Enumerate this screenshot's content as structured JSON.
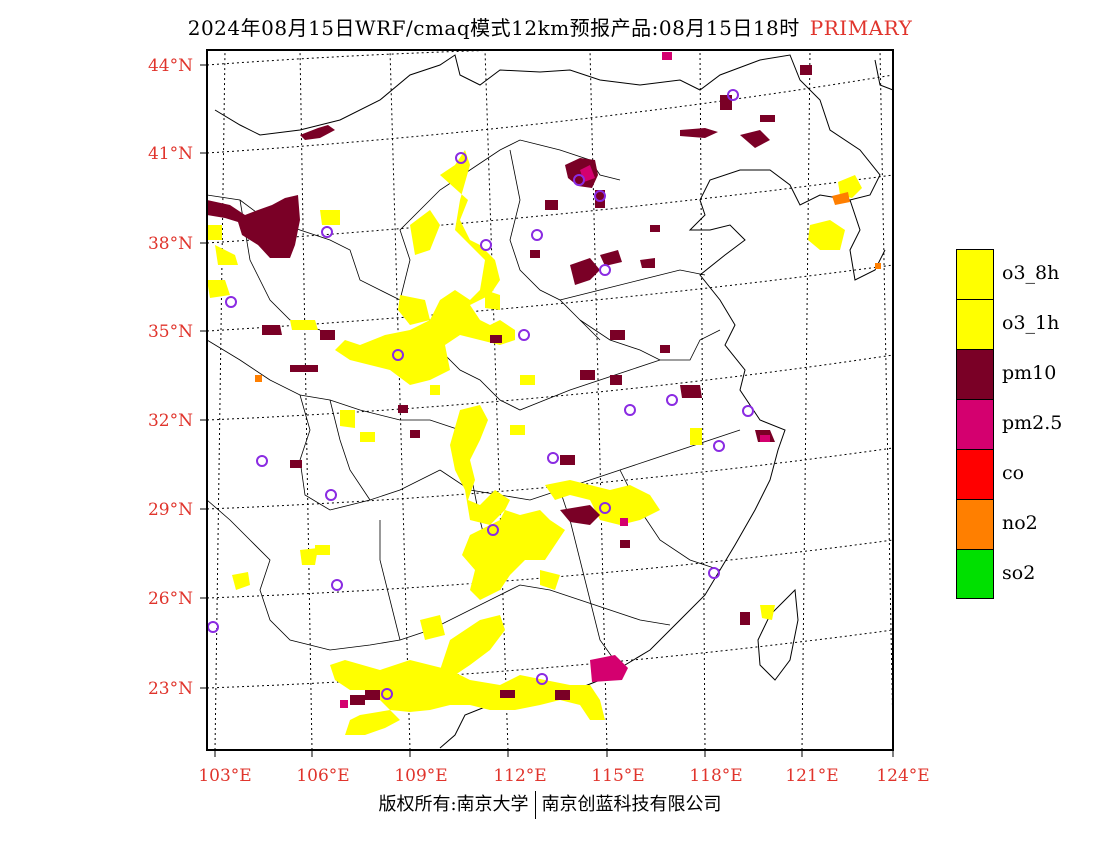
{
  "title": {
    "main": "2024年08月15日WRF/cmaq模式12km预报产品:08月15日18时",
    "tag": "PRIMARY"
  },
  "axes": {
    "lat_labels": [
      "44°N",
      "41°N",
      "38°N",
      "35°N",
      "32°N",
      "29°N",
      "26°N",
      "23°N"
    ],
    "lon_labels": [
      "103°E",
      "106°E",
      "109°E",
      "112°E",
      "115°E",
      "118°E",
      "121°E",
      "124°E"
    ]
  },
  "legend": {
    "items": [
      {
        "label": "o3_8h",
        "color": "#ffff00"
      },
      {
        "label": "o3_1h",
        "color": "#ffff00"
      },
      {
        "label": "pm10",
        "color": "#7a0026"
      },
      {
        "label": "pm2.5",
        "color": "#d4006f"
      },
      {
        "label": "co",
        "color": "#ff0000"
      },
      {
        "label": "no2",
        "color": "#ff7f00"
      },
      {
        "label": "so2",
        "color": "#00e000"
      }
    ]
  },
  "footer": {
    "left": "版权所有:南京大学",
    "right": "南京创蓝科技有限公司"
  },
  "colors": {
    "axis_label": "#e0342c",
    "station_marker": "#8a2be2"
  }
}
